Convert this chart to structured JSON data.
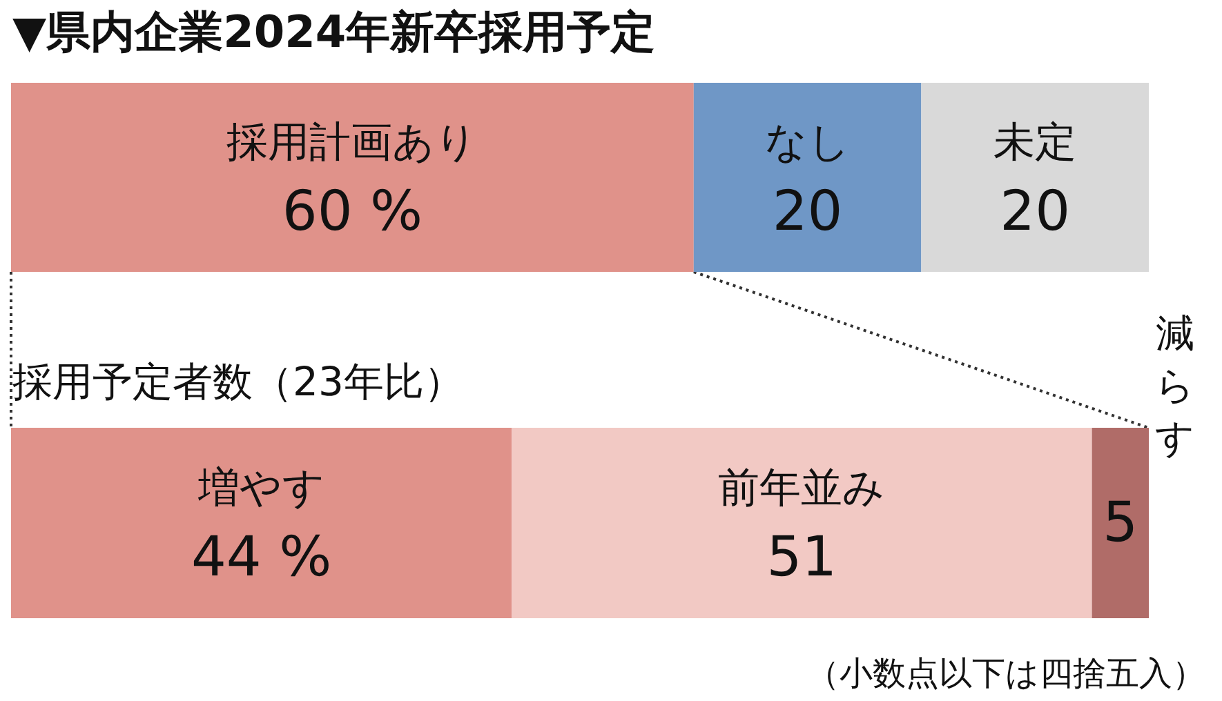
{
  "chart_data": [
    {
      "type": "bar",
      "title": "▼県内企業2024年新卒採用予定",
      "orientation": "horizontal",
      "stacked": true,
      "categories": [
        null
      ],
      "legend": false,
      "series": [
        {
          "name": "採用計画あり",
          "color": "#e0928a",
          "values": [
            60
          ],
          "value_labels": [
            "60 %"
          ]
        },
        {
          "name": "なし",
          "color": "#6f97c6",
          "values": [
            20
          ],
          "value_labels": [
            "20"
          ]
        },
        {
          "name": "未定",
          "color": "#d9d9d9",
          "values": [
            20
          ],
          "value_labels": [
            "20"
          ]
        }
      ]
    },
    {
      "type": "bar",
      "title": "採用予定者数（23年比）",
      "orientation": "horizontal",
      "stacked": true,
      "categories": [
        null
      ],
      "legend": false,
      "annotations": [
        "（小数点以下は四捨五入）"
      ],
      "series": [
        {
          "name": "増やす",
          "color": "#e0928a",
          "values": [
            44
          ],
          "value_labels": [
            "44 %"
          ]
        },
        {
          "name": "前年並み",
          "color": "#f2c9c4",
          "values": [
            51
          ],
          "value_labels": [
            "51"
          ]
        },
        {
          "name": "減らす",
          "color": "#b06c68",
          "values": [
            5
          ],
          "value_labels": [
            "5"
          ]
        }
      ]
    }
  ]
}
